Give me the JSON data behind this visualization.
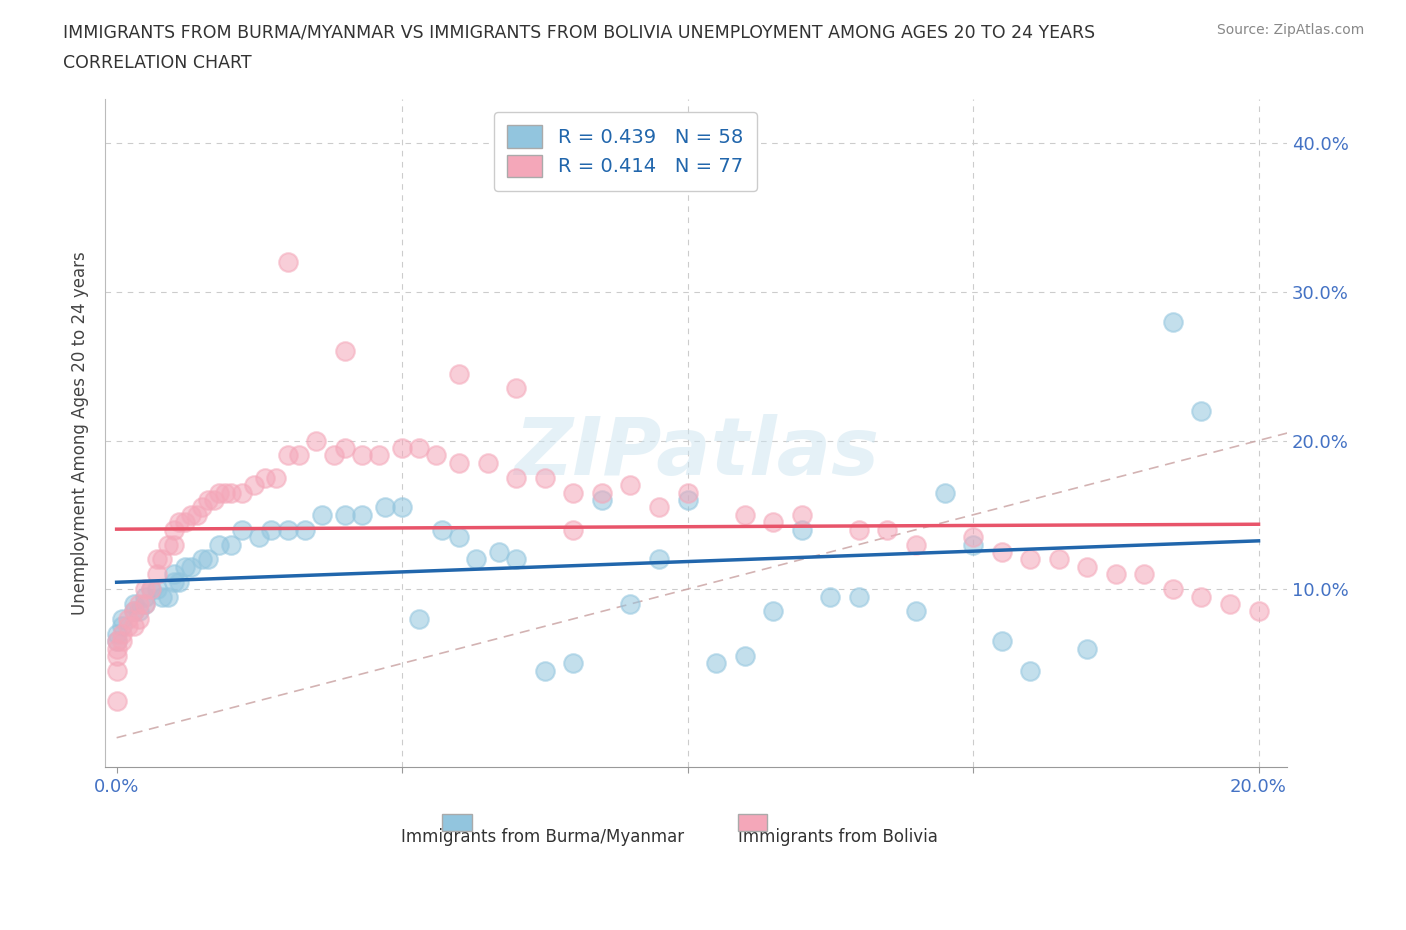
{
  "title_line1": "IMMIGRANTS FROM BURMA/MYANMAR VS IMMIGRANTS FROM BOLIVIA UNEMPLOYMENT AMONG AGES 20 TO 24 YEARS",
  "title_line2": "CORRELATION CHART",
  "source_text": "Source: ZipAtlas.com",
  "ylabel": "Unemployment Among Ages 20 to 24 years",
  "xlim": [
    -0.002,
    0.205
  ],
  "ylim": [
    -0.02,
    0.43
  ],
  "xticks": [
    0.0,
    0.05,
    0.1,
    0.15,
    0.2
  ],
  "xticklabels": [
    "0.0%",
    "",
    "",
    "",
    "20.0%"
  ],
  "yticks": [
    0.0,
    0.1,
    0.2,
    0.3,
    0.4
  ],
  "yticklabels_right": [
    "",
    "10.0%",
    "20.0%",
    "30.0%",
    "40.0%"
  ],
  "legend_label1": "Immigrants from Burma/Myanmar",
  "legend_label2": "Immigrants from Bolivia",
  "R1": 0.439,
  "N1": 58,
  "R2": 0.414,
  "N2": 77,
  "color_blue": "#92c5de",
  "color_pink": "#f4a7b9",
  "color_blue_line": "#2166ac",
  "color_pink_line": "#e8546a",
  "color_diag": "#c8a0a0",
  "watermark": "ZIPatlas",
  "tick_color": "#4472c4",
  "blue_x": [
    0.0,
    0.0,
    0.001,
    0.001,
    0.003,
    0.003,
    0.004,
    0.005,
    0.005,
    0.006,
    0.007,
    0.008,
    0.009,
    0.01,
    0.01,
    0.011,
    0.012,
    0.013,
    0.015,
    0.016,
    0.018,
    0.02,
    0.022,
    0.025,
    0.027,
    0.03,
    0.033,
    0.036,
    0.04,
    0.043,
    0.047,
    0.05,
    0.053,
    0.057,
    0.06,
    0.063,
    0.067,
    0.07,
    0.075,
    0.08,
    0.085,
    0.09,
    0.095,
    0.1,
    0.105,
    0.11,
    0.115,
    0.12,
    0.125,
    0.13,
    0.14,
    0.145,
    0.15,
    0.155,
    0.16,
    0.17,
    0.185,
    0.19
  ],
  "blue_y": [
    0.07,
    0.065,
    0.08,
    0.075,
    0.09,
    0.085,
    0.085,
    0.095,
    0.09,
    0.1,
    0.1,
    0.095,
    0.095,
    0.11,
    0.105,
    0.105,
    0.115,
    0.115,
    0.12,
    0.12,
    0.13,
    0.13,
    0.14,
    0.135,
    0.14,
    0.14,
    0.14,
    0.15,
    0.15,
    0.15,
    0.155,
    0.155,
    0.08,
    0.14,
    0.135,
    0.12,
    0.125,
    0.12,
    0.045,
    0.05,
    0.16,
    0.09,
    0.12,
    0.16,
    0.05,
    0.055,
    0.085,
    0.14,
    0.095,
    0.095,
    0.085,
    0.165,
    0.13,
    0.065,
    0.045,
    0.06,
    0.28,
    0.22
  ],
  "pink_x": [
    0.0,
    0.0,
    0.0,
    0.0,
    0.0,
    0.001,
    0.001,
    0.002,
    0.002,
    0.003,
    0.003,
    0.004,
    0.004,
    0.005,
    0.005,
    0.006,
    0.007,
    0.007,
    0.008,
    0.009,
    0.01,
    0.01,
    0.011,
    0.012,
    0.013,
    0.014,
    0.015,
    0.016,
    0.017,
    0.018,
    0.019,
    0.02,
    0.022,
    0.024,
    0.026,
    0.028,
    0.03,
    0.032,
    0.035,
    0.038,
    0.04,
    0.043,
    0.046,
    0.05,
    0.053,
    0.056,
    0.06,
    0.065,
    0.07,
    0.075,
    0.08,
    0.085,
    0.09,
    0.095,
    0.1,
    0.11,
    0.115,
    0.12,
    0.13,
    0.135,
    0.14,
    0.15,
    0.155,
    0.16,
    0.165,
    0.17,
    0.175,
    0.18,
    0.185,
    0.19,
    0.195,
    0.2,
    0.03,
    0.04,
    0.06,
    0.07,
    0.08
  ],
  "pink_y": [
    0.065,
    0.06,
    0.055,
    0.045,
    0.025,
    0.07,
    0.065,
    0.08,
    0.075,
    0.085,
    0.075,
    0.09,
    0.08,
    0.1,
    0.09,
    0.1,
    0.12,
    0.11,
    0.12,
    0.13,
    0.14,
    0.13,
    0.145,
    0.145,
    0.15,
    0.15,
    0.155,
    0.16,
    0.16,
    0.165,
    0.165,
    0.165,
    0.165,
    0.17,
    0.175,
    0.175,
    0.19,
    0.19,
    0.2,
    0.19,
    0.195,
    0.19,
    0.19,
    0.195,
    0.195,
    0.19,
    0.185,
    0.185,
    0.175,
    0.175,
    0.165,
    0.165,
    0.17,
    0.155,
    0.165,
    0.15,
    0.145,
    0.15,
    0.14,
    0.14,
    0.13,
    0.135,
    0.125,
    0.12,
    0.12,
    0.115,
    0.11,
    0.11,
    0.1,
    0.095,
    0.09,
    0.085,
    0.32,
    0.26,
    0.245,
    0.235,
    0.14
  ]
}
